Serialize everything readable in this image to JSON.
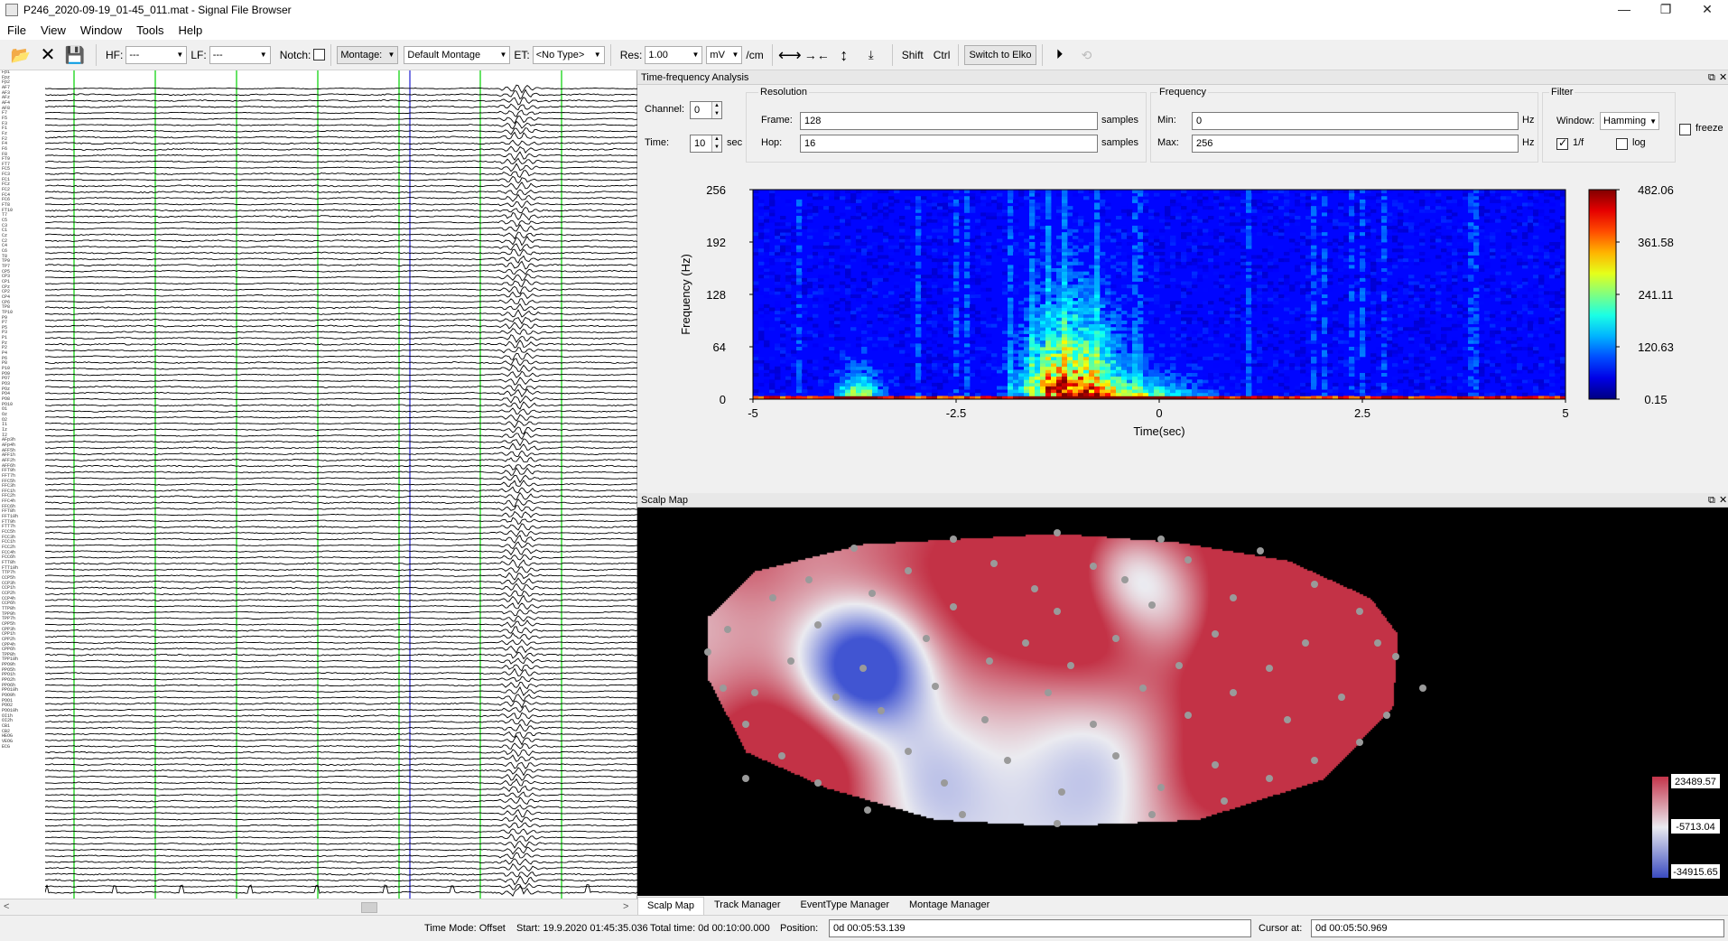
{
  "window": {
    "title": "P246_2020-09-19_01-45_011.mat - Signal File Browser",
    "controls": [
      "—",
      "❐",
      "✕"
    ]
  },
  "menu": [
    "File",
    "View",
    "Window",
    "Tools",
    "Help"
  ],
  "toolbar": {
    "hf_label": "HF:",
    "hf_value": "---",
    "lf_label": "LF:",
    "lf_value": "---",
    "notch_label": "Notch:",
    "montage_button": "Montage:",
    "montage_value": "Default Montage",
    "et_label": "ET:",
    "et_value": "<No Type>",
    "res_label": "Res:",
    "res_value": "1.00",
    "unit_value": "mV",
    "per_cm": "/cm",
    "shift_label": "Shift",
    "ctrl_label": "Ctrl",
    "switch_button": "Switch to Elko"
  },
  "eeg": {
    "channel_labels": [
      "Fp1",
      "Fpz",
      "Fp2",
      "AF7",
      "AF3",
      "AFz",
      "AF4",
      "AF8",
      "F7",
      "F5",
      "F3",
      "F1",
      "Fz",
      "F2",
      "F4",
      "F6",
      "F8",
      "FT9",
      "FT7",
      "FC5",
      "FC3",
      "FC1",
      "FCz",
      "FC2",
      "FC4",
      "FC6",
      "FT8",
      "FT10",
      "T7",
      "C5",
      "C3",
      "C1",
      "Cz",
      "C2",
      "C4",
      "C6",
      "T8",
      "TP9",
      "TP7",
      "CP5",
      "CP3",
      "CP1",
      "CPz",
      "CP2",
      "CP4",
      "CP6",
      "TP8",
      "TP10",
      "P9",
      "P7",
      "P5",
      "P3",
      "P1",
      "Pz",
      "P2",
      "P4",
      "P6",
      "P8",
      "P10",
      "PO9",
      "PO7",
      "PO3",
      "POz",
      "PO4",
      "PO8",
      "PO10",
      "O1",
      "Oz",
      "O2",
      "I1",
      "Iz",
      "I2",
      "AFp3h",
      "AFp4h",
      "AFF5h",
      "AFF1h",
      "AFF2h",
      "AFF6h",
      "FFT9h",
      "FFT7h",
      "FFC5h",
      "FFC3h",
      "FFC1h",
      "FFC2h",
      "FFC4h",
      "FFC6h",
      "FFT8h",
      "FFT10h",
      "FTT9h",
      "FTT7h",
      "FCC5h",
      "FCC3h",
      "FCC1h",
      "FCC2h",
      "FCC4h",
      "FCC6h",
      "FTT8h",
      "FTT10h",
      "TTP7h",
      "CCP5h",
      "CCP3h",
      "CCP1h",
      "CCP2h",
      "CCP4h",
      "CCP6h",
      "TTP8h",
      "TPP9h",
      "TPP7h",
      "CPP5h",
      "CPP3h",
      "CPP1h",
      "CPP2h",
      "CPP4h",
      "CPP6h",
      "TPP8h",
      "TPP10h",
      "PPO9h",
      "PPO5h",
      "PPO1h",
      "PPO2h",
      "PPO6h",
      "PPO10h",
      "POO9h",
      "POO1",
      "POO2",
      "POO10h",
      "OI1h",
      "OI2h",
      "CB1",
      "CB2",
      "HEOG",
      "VEOG",
      "ECG"
    ]
  },
  "tf": {
    "panel_title": "Time-frequency Analysis",
    "channel_label": "Channel:",
    "channel_value": "0",
    "time_label": "Time:",
    "time_value": "10",
    "time_unit": "sec",
    "resolution_title": "Resolution",
    "frame_label": "Frame:",
    "frame_value": "128",
    "frame_unit": "samples",
    "hop_label": "Hop:",
    "hop_value": "16",
    "hop_unit": "samples",
    "frequency_title": "Frequency",
    "min_label": "Min:",
    "min_value": "0",
    "min_unit": "Hz",
    "max_label": "Max:",
    "max_value": "256",
    "max_unit": "Hz",
    "filter_title": "Filter",
    "window_label": "Window:",
    "window_value": "Hamming",
    "onef_label": "1/f",
    "log_label": "log",
    "freeze_label": "freeze"
  },
  "chart_data": {
    "type": "heatmap",
    "xlabel": "Time(sec)",
    "ylabel": "Frequency (Hz)",
    "xlim": [
      -5,
      5
    ],
    "ylim": [
      0,
      256
    ],
    "x_ticks": [
      "-5",
      "-2.5",
      "0",
      "2.5",
      "5"
    ],
    "y_ticks": [
      "256",
      "192",
      "128",
      "64",
      "0"
    ],
    "colorbar_ticks": [
      "482.06",
      "361.58",
      "241.11",
      "120.63",
      "0.15"
    ],
    "colorbar_range": [
      0.15,
      482.06
    ]
  },
  "scalp": {
    "panel_title": "Scalp Map",
    "colorbar_ticks": [
      "23489.57",
      "-5713.04",
      "-34915.65"
    ]
  },
  "tabs": [
    "Scalp Map",
    "Track Manager",
    "EventType Manager",
    "Montage Manager"
  ],
  "status": {
    "time_mode": "Time Mode: Offset",
    "start": "Start: 19.9.2020 01:45:35.036",
    "total": "Total time: 0d 00:10:00.000",
    "position_label": "Position:",
    "position_value": "0d 00:05:53.139",
    "cursor_label": "Cursor at:",
    "cursor_value": "0d 00:05:50.969"
  }
}
